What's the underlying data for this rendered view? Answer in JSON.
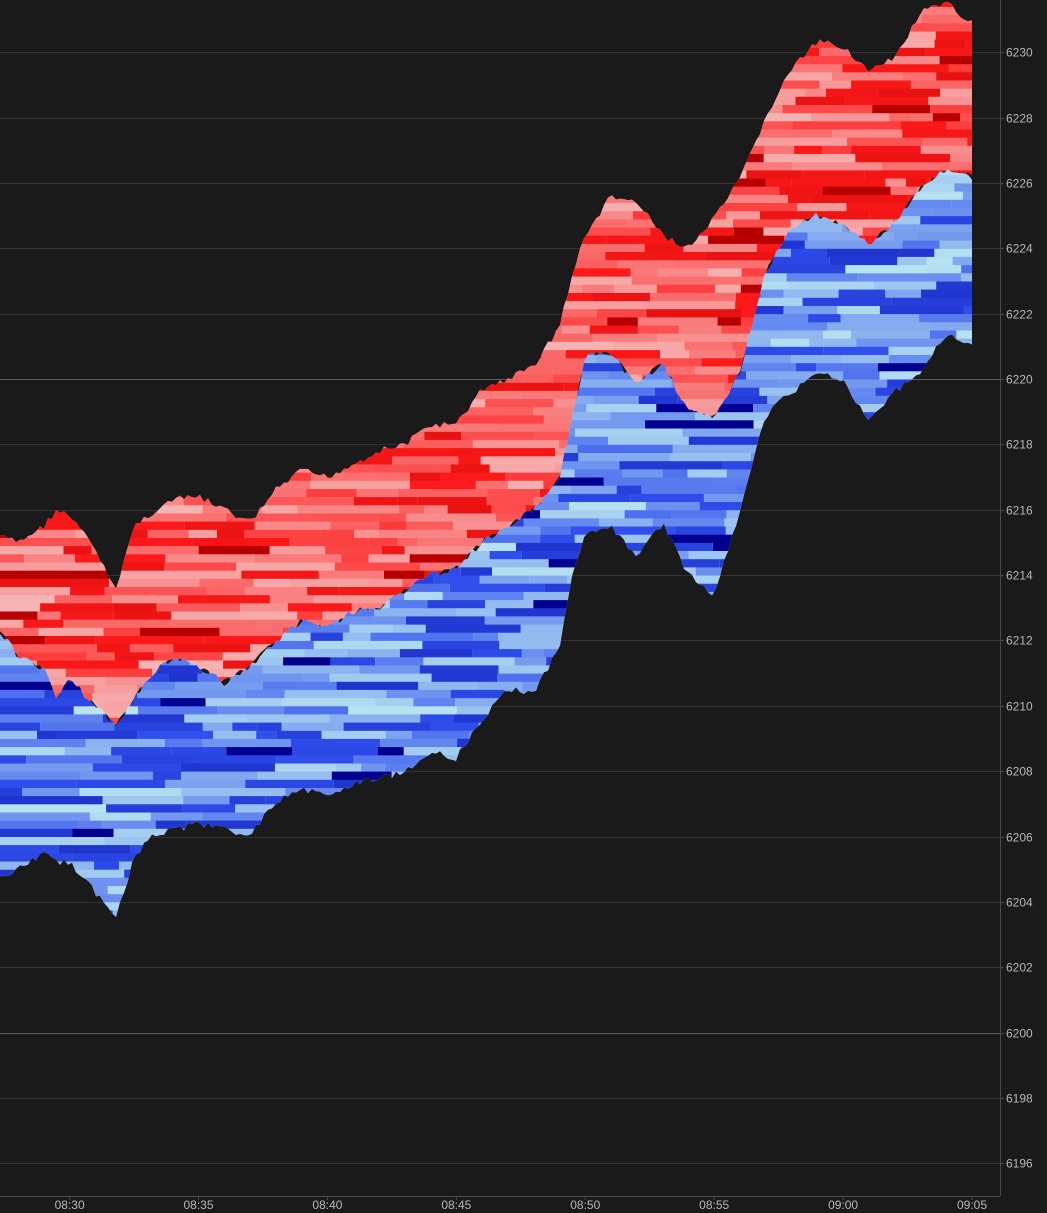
{
  "chart_data": {
    "type": "heatmap",
    "title": "",
    "xlabel": "",
    "ylabel": "",
    "x_ticks": [
      "08:30",
      "08:35",
      "08:40",
      "08:45",
      "08:50",
      "08:55",
      "09:00",
      "09:05"
    ],
    "y_ticks": [
      "6196",
      "6198",
      "6200",
      "6202",
      "6204",
      "6206",
      "6208",
      "6210",
      "6212",
      "6214",
      "6216",
      "6218",
      "6220",
      "6222",
      "6224",
      "6226",
      "6228",
      "6230"
    ],
    "xlim": [
      "08:27:18",
      "09:05:00"
    ],
    "ylim": [
      6195.0,
      6231.6
    ],
    "emphasized_levels": [
      6200,
      6220
    ],
    "grid": true,
    "background_color": "#1a1a1a",
    "ask_colors": [
      "#f6b4b4",
      "#ff1a1a",
      "#b80000"
    ],
    "bid_colors": [
      "#b8e3f0",
      "#3050ee",
      "#000090"
    ],
    "series": [
      {
        "name": "",
        "side": "ask",
        "x": [
          "08:27:18",
          "08:28:00",
          "08:29:00",
          "08:29:30",
          "08:30:00",
          "08:31:00",
          "08:31:45",
          "08:32:30",
          "08:33:00",
          "08:34:00",
          "08:35:00",
          "08:36:00",
          "08:37:00",
          "08:38:00",
          "08:39:00",
          "08:40:00",
          "08:41:00",
          "08:42:00",
          "08:43:00",
          "08:44:00",
          "08:45:00",
          "08:46:00",
          "08:47:00",
          "08:48:00",
          "08:49:00",
          "08:49:30",
          "08:50:00",
          "08:51:00",
          "08:52:00",
          "08:53:00",
          "08:54:00",
          "08:55:00",
          "08:56:00",
          "08:57:00",
          "08:58:00",
          "08:59:00",
          "09:00:00",
          "09:01:00",
          "09:02:00",
          "09:03:00",
          "09:04:00",
          "09:05:00"
        ],
        "high": [
          6215.2,
          6215.0,
          6215.5,
          6216.0,
          6215.8,
          6214.8,
          6213.5,
          6215.5,
          6215.8,
          6216.3,
          6216.4,
          6216.0,
          6215.6,
          6216.6,
          6217.2,
          6217.0,
          6217.4,
          6217.8,
          6218.0,
          6218.6,
          6218.6,
          6219.7,
          6220.0,
          6220.4,
          6221.6,
          6223.2,
          6224.4,
          6225.6,
          6225.4,
          6224.4,
          6224.0,
          6224.9,
          6226.1,
          6228.0,
          6229.5,
          6230.3,
          6230.2,
          6229.4,
          6229.8,
          6231.2,
          6231.5,
          6230.9
        ],
        "low": [
          6212.3,
          6211.5,
          6211.1,
          6210.2,
          6210.8,
          6210.0,
          6209.4,
          6210.2,
          6210.8,
          6211.5,
          6211.2,
          6210.7,
          6211.2,
          6212.0,
          6212.6,
          6212.4,
          6212.9,
          6213.0,
          6213.5,
          6214.0,
          6214.2,
          6215.0,
          6215.5,
          6216.0,
          6217.0,
          6218.8,
          6220.7,
          6220.8,
          6219.8,
          6220.5,
          6219.0,
          6218.8,
          6220.2,
          6223.3,
          6224.6,
          6225.0,
          6224.7,
          6224.1,
          6224.8,
          6225.8,
          6226.4,
          6226.2
        ]
      },
      {
        "name": "",
        "side": "bid",
        "x": [
          "08:27:18",
          "08:28:00",
          "08:29:00",
          "08:29:30",
          "08:30:00",
          "08:31:00",
          "08:31:45",
          "08:32:30",
          "08:33:00",
          "08:34:00",
          "08:35:00",
          "08:36:00",
          "08:37:00",
          "08:38:00",
          "08:39:00",
          "08:40:00",
          "08:41:00",
          "08:42:00",
          "08:43:00",
          "08:44:00",
          "08:45:00",
          "08:46:00",
          "08:47:00",
          "08:48:00",
          "08:49:00",
          "08:49:30",
          "08:50:00",
          "08:51:00",
          "08:52:00",
          "08:53:00",
          "08:54:00",
          "08:55:00",
          "08:56:00",
          "08:57:00",
          "08:58:00",
          "08:59:00",
          "09:00:00",
          "09:01:00",
          "09:02:00",
          "09:03:00",
          "09:04:00",
          "09:05:00"
        ],
        "high": [
          6212.3,
          6211.5,
          6211.1,
          6210.2,
          6210.8,
          6210.0,
          6209.4,
          6210.2,
          6210.8,
          6211.5,
          6211.2,
          6210.7,
          6211.2,
          6212.0,
          6212.6,
          6212.4,
          6212.9,
          6213.0,
          6213.5,
          6214.0,
          6214.2,
          6215.0,
          6215.5,
          6216.0,
          6217.0,
          6218.8,
          6220.7,
          6220.8,
          6219.8,
          6220.5,
          6219.0,
          6218.8,
          6220.2,
          6223.3,
          6224.6,
          6225.0,
          6224.7,
          6224.1,
          6224.8,
          6225.8,
          6226.4,
          6226.2
        ],
        "low": [
          6204.8,
          6205.0,
          6205.5,
          6205.2,
          6205.2,
          6204.3,
          6203.5,
          6205.3,
          6205.9,
          6206.2,
          6206.4,
          6206.2,
          6206.1,
          6207.0,
          6207.5,
          6207.2,
          6207.6,
          6207.8,
          6208.0,
          6208.6,
          6208.4,
          6209.6,
          6210.5,
          6210.4,
          6211.8,
          6214.0,
          6215.2,
          6215.5,
          6214.5,
          6215.6,
          6214.0,
          6213.4,
          6216.0,
          6218.9,
          6219.6,
          6220.2,
          6220.0,
          6218.7,
          6219.6,
          6220.2,
          6221.4,
          6221.0
        ]
      }
    ]
  }
}
